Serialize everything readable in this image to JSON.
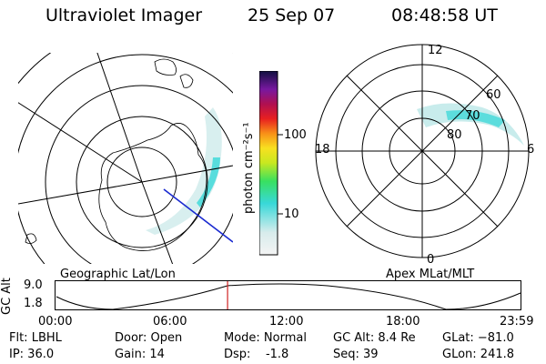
{
  "header": {
    "instrument": "Ultraviolet Imager",
    "date": "25 Sep 07",
    "time": "08:48:58 UT"
  },
  "colorbar": {
    "unit_label": "photon cm⁻²s⁻¹",
    "ticks": [
      "100",
      "10"
    ]
  },
  "left_panel": {
    "label": "Geographic Lat/Lon"
  },
  "right_panel": {
    "label": "Apex MLat/MLT",
    "mlt_labels": {
      "top": "12",
      "left": "18",
      "right": "6",
      "bottom": "0"
    },
    "lat_labels": [
      "60",
      "70",
      "80"
    ]
  },
  "timeline": {
    "ylabel": "GC Alt",
    "y_ticks": [
      "9.0",
      "1.8"
    ],
    "x_ticks": [
      "00:00",
      "06:00",
      "12:00",
      "18:00",
      "23:59"
    ],
    "marker_fraction": 0.37
  },
  "info": {
    "flt": "Flt: LBHL",
    "ip": "IP: 36.0",
    "door": "Door: Open",
    "gain": "Gain: 14",
    "mode": "Mode: Normal",
    "dsp": "Dsp:    -1.8",
    "gcalt": "GC Alt: 8.4 Re",
    "seq": "Seq: 39",
    "glat": "GLat: −81.0",
    "glon": "GLon: 241.8"
  },
  "colors": {
    "aurora_cyan": "#38d8d8",
    "aurora_pale": "#c8ecec",
    "line": "#000000",
    "marker": "#d02020",
    "track": "#1a2ad0"
  }
}
